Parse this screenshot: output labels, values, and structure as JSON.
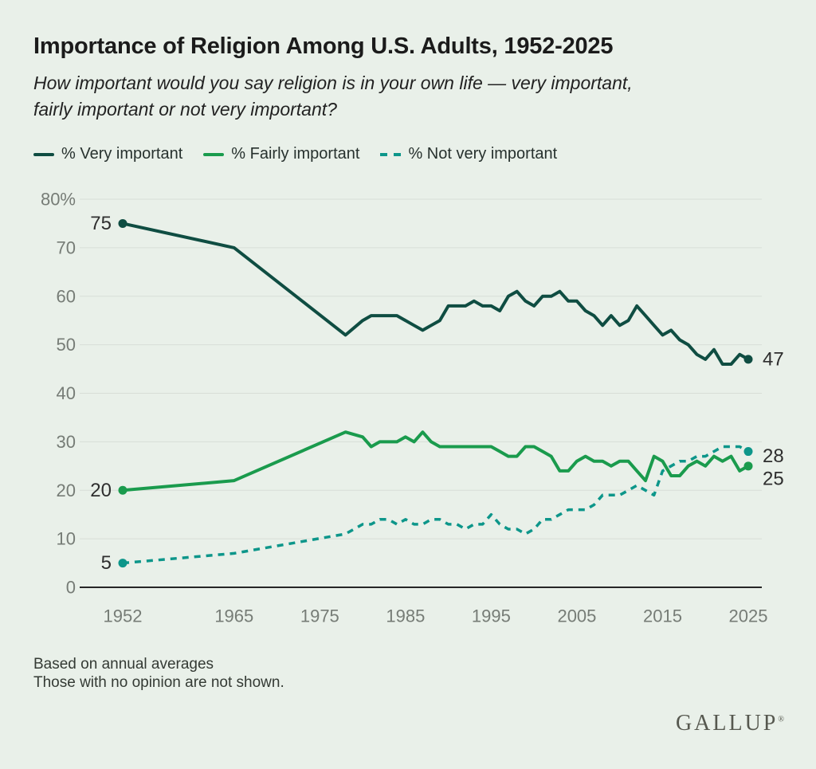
{
  "title": "Importance of Religion Among U.S. Adults, 1952-2025",
  "subtitle_lines": [
    "How important would you say religion is in your own life — very important,",
    "fairly important or not very important?"
  ],
  "legend": {
    "items": [
      {
        "label": "% Very important",
        "color": "#0f4d42",
        "style": "solid"
      },
      {
        "label": "% Fairly important",
        "color": "#1a9b4d",
        "style": "solid"
      },
      {
        "label": "% Not very important",
        "color": "#0d968a",
        "style": "dashed"
      }
    ]
  },
  "footnote_lines": [
    "Based on annual averages",
    "Those with no opinion are not shown."
  ],
  "logo": {
    "text": "GALLUP",
    "registered": "®"
  },
  "chart_data": {
    "type": "line",
    "x_range": [
      1952,
      2025
    ],
    "y_range": [
      0,
      80
    ],
    "grid": true,
    "grid_color": "#d8ded7",
    "axis_color": "#262626",
    "tick_label_color": "#767c76",
    "value_label_color": "#2e2e2e",
    "x_ticks": [
      1952,
      1965,
      1975,
      1985,
      1995,
      2005,
      2015,
      2025
    ],
    "y_ticks": [
      {
        "value": 80,
        "label": "80%"
      },
      {
        "value": 70,
        "label": "70"
      },
      {
        "value": 60,
        "label": "60"
      },
      {
        "value": 50,
        "label": "50"
      },
      {
        "value": 40,
        "label": "40"
      },
      {
        "value": 30,
        "label": "30"
      },
      {
        "value": 20,
        "label": "20"
      },
      {
        "value": 10,
        "label": "10"
      },
      {
        "value": 0,
        "label": "0"
      }
    ],
    "series": [
      {
        "name": "% Very important",
        "color": "#0f4d42",
        "dash": null,
        "start_label": "75",
        "end_label": "47",
        "points": [
          [
            1952,
            75
          ],
          [
            1965,
            70
          ],
          [
            1978,
            52
          ],
          [
            1980,
            55
          ],
          [
            1981,
            56
          ],
          [
            1982,
            56
          ],
          [
            1983,
            56
          ],
          [
            1984,
            56
          ],
          [
            1985,
            55
          ],
          [
            1986,
            54
          ],
          [
            1987,
            53
          ],
          [
            1988,
            54
          ],
          [
            1989,
            55
          ],
          [
            1990,
            58
          ],
          [
            1991,
            58
          ],
          [
            1992,
            58
          ],
          [
            1993,
            59
          ],
          [
            1994,
            58
          ],
          [
            1995,
            58
          ],
          [
            1996,
            57
          ],
          [
            1997,
            60
          ],
          [
            1998,
            61
          ],
          [
            1999,
            59
          ],
          [
            2000,
            58
          ],
          [
            2001,
            60
          ],
          [
            2002,
            60
          ],
          [
            2003,
            61
          ],
          [
            2004,
            59
          ],
          [
            2005,
            59
          ],
          [
            2006,
            57
          ],
          [
            2007,
            56
          ],
          [
            2008,
            54
          ],
          [
            2009,
            56
          ],
          [
            2010,
            54
          ],
          [
            2011,
            55
          ],
          [
            2012,
            58
          ],
          [
            2013,
            56
          ],
          [
            2014,
            54
          ],
          [
            2015,
            52
          ],
          [
            2016,
            53
          ],
          [
            2017,
            51
          ],
          [
            2018,
            50
          ],
          [
            2019,
            48
          ],
          [
            2020,
            47
          ],
          [
            2021,
            49
          ],
          [
            2022,
            46
          ],
          [
            2023,
            46
          ],
          [
            2024,
            48
          ],
          [
            2025,
            47
          ]
        ]
      },
      {
        "name": "% Fairly important",
        "color": "#1a9b4d",
        "dash": null,
        "start_label": "20",
        "end_label": "25",
        "points": [
          [
            1952,
            20
          ],
          [
            1965,
            22
          ],
          [
            1978,
            32
          ],
          [
            1980,
            31
          ],
          [
            1981,
            29
          ],
          [
            1982,
            30
          ],
          [
            1983,
            30
          ],
          [
            1984,
            30
          ],
          [
            1985,
            31
          ],
          [
            1986,
            30
          ],
          [
            1987,
            32
          ],
          [
            1988,
            30
          ],
          [
            1989,
            29
          ],
          [
            1990,
            29
          ],
          [
            1991,
            29
          ],
          [
            1992,
            29
          ],
          [
            1993,
            29
          ],
          [
            1994,
            29
          ],
          [
            1995,
            29
          ],
          [
            1996,
            28
          ],
          [
            1997,
            27
          ],
          [
            1998,
            27
          ],
          [
            1999,
            29
          ],
          [
            2000,
            29
          ],
          [
            2001,
            28
          ],
          [
            2002,
            27
          ],
          [
            2003,
            24
          ],
          [
            2004,
            24
          ],
          [
            2005,
            26
          ],
          [
            2006,
            27
          ],
          [
            2007,
            26
          ],
          [
            2008,
            26
          ],
          [
            2009,
            25
          ],
          [
            2010,
            26
          ],
          [
            2011,
            26
          ],
          [
            2012,
            24
          ],
          [
            2013,
            22
          ],
          [
            2014,
            27
          ],
          [
            2015,
            26
          ],
          [
            2016,
            23
          ],
          [
            2017,
            23
          ],
          [
            2018,
            25
          ],
          [
            2019,
            26
          ],
          [
            2020,
            25
          ],
          [
            2021,
            27
          ],
          [
            2022,
            26
          ],
          [
            2023,
            27
          ],
          [
            2024,
            24
          ],
          [
            2025,
            25
          ]
        ]
      },
      {
        "name": "% Not very important",
        "color": "#0d968a",
        "dash": "8 7",
        "start_label": "5",
        "end_label": "28",
        "points": [
          [
            1952,
            5
          ],
          [
            1965,
            7
          ],
          [
            1978,
            11
          ],
          [
            1980,
            13
          ],
          [
            1981,
            13
          ],
          [
            1982,
            14
          ],
          [
            1983,
            14
          ],
          [
            1984,
            13
          ],
          [
            1985,
            14
          ],
          [
            1986,
            13
          ],
          [
            1987,
            13
          ],
          [
            1988,
            14
          ],
          [
            1989,
            14
          ],
          [
            1990,
            13
          ],
          [
            1991,
            13
          ],
          [
            1992,
            12
          ],
          [
            1993,
            13
          ],
          [
            1994,
            13
          ],
          [
            1995,
            15
          ],
          [
            1996,
            13
          ],
          [
            1997,
            12
          ],
          [
            1998,
            12
          ],
          [
            1999,
            11
          ],
          [
            2000,
            12
          ],
          [
            2001,
            14
          ],
          [
            2002,
            14
          ],
          [
            2003,
            15
          ],
          [
            2004,
            16
          ],
          [
            2005,
            16
          ],
          [
            2006,
            16
          ],
          [
            2007,
            17
          ],
          [
            2008,
            19
          ],
          [
            2009,
            19
          ],
          [
            2010,
            19
          ],
          [
            2011,
            20
          ],
          [
            2012,
            21
          ],
          [
            2013,
            20
          ],
          [
            2014,
            19
          ],
          [
            2015,
            24
          ],
          [
            2016,
            25
          ],
          [
            2017,
            26
          ],
          [
            2018,
            26
          ],
          [
            2019,
            27
          ],
          [
            2020,
            27
          ],
          [
            2021,
            28
          ],
          [
            2022,
            29
          ],
          [
            2023,
            29
          ],
          [
            2024,
            29
          ],
          [
            2025,
            28
          ]
        ]
      }
    ]
  }
}
